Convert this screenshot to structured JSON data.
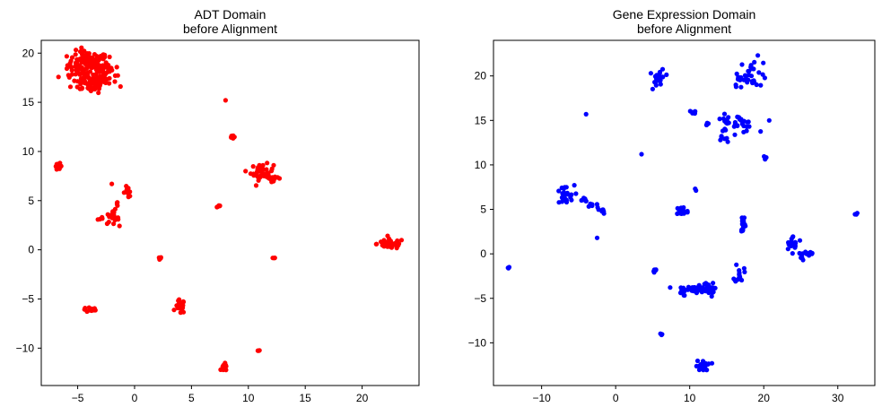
{
  "chart_data": [
    {
      "type": "scatter",
      "title": "ADT Domain\nbefore Alignment",
      "color": "#ff0000",
      "xlim": [
        -8.2,
        25.0
      ],
      "ylim": [
        -13.8,
        21.3
      ],
      "xticks": [
        -5,
        0,
        5,
        10,
        15,
        20
      ],
      "yticks": [
        -10,
        -5,
        0,
        5,
        10,
        15,
        20
      ],
      "clusters": [
        {
          "cx": -4.1,
          "cy": 18.8,
          "sx": 0.9,
          "sy": 0.7,
          "n": 120
        },
        {
          "cx": -3.9,
          "cy": 17.0,
          "sx": 0.8,
          "sy": 0.5,
          "n": 60
        },
        {
          "cx": -2.6,
          "cy": 18.0,
          "sx": 0.5,
          "sy": 0.7,
          "n": 40
        },
        {
          "cx": 8.0,
          "cy": 15.2,
          "sx": 0.05,
          "sy": 0.05,
          "n": 1
        },
        {
          "cx": 8.5,
          "cy": 11.5,
          "sx": 0.1,
          "sy": 0.1,
          "n": 6
        },
        {
          "cx": 11.2,
          "cy": 7.9,
          "sx": 0.5,
          "sy": 0.4,
          "n": 40
        },
        {
          "cx": 12.2,
          "cy": 7.3,
          "sx": 0.4,
          "sy": 0.15,
          "n": 20
        },
        {
          "cx": -6.7,
          "cy": 8.5,
          "sx": 0.15,
          "sy": 0.15,
          "n": 10
        },
        {
          "cx": -0.6,
          "cy": 5.9,
          "sx": 0.2,
          "sy": 0.3,
          "n": 12
        },
        {
          "cx": -2.0,
          "cy": 3.2,
          "sx": 0.3,
          "sy": 0.3,
          "n": 18
        },
        {
          "cx": -1.5,
          "cy": 4.5,
          "sx": 0.1,
          "sy": 0.2,
          "n": 5
        },
        {
          "cx": -3.0,
          "cy": 3.2,
          "sx": 0.15,
          "sy": 0.1,
          "n": 4
        },
        {
          "cx": -2.0,
          "cy": 6.7,
          "sx": 0.05,
          "sy": 0.05,
          "n": 1
        },
        {
          "cx": 7.4,
          "cy": 4.4,
          "sx": 0.1,
          "sy": 0.1,
          "n": 5
        },
        {
          "cx": 22.5,
          "cy": 0.6,
          "sx": 0.6,
          "sy": 0.25,
          "n": 50
        },
        {
          "cx": 2.2,
          "cy": -0.9,
          "sx": 0.1,
          "sy": 0.1,
          "n": 4
        },
        {
          "cx": 12.2,
          "cy": -0.9,
          "sx": 0.08,
          "sy": 0.1,
          "n": 3
        },
        {
          "cx": -3.8,
          "cy": -6.1,
          "sx": 0.4,
          "sy": 0.12,
          "n": 14
        },
        {
          "cx": 4.0,
          "cy": -5.8,
          "sx": 0.2,
          "sy": 0.35,
          "n": 18
        },
        {
          "cx": 10.9,
          "cy": -10.3,
          "sx": 0.08,
          "sy": 0.06,
          "n": 3
        },
        {
          "cx": 7.9,
          "cy": -12.0,
          "sx": 0.15,
          "sy": 0.2,
          "n": 12
        }
      ]
    },
    {
      "type": "scatter",
      "title": "Gene Expression Domain\nbefore Alignment",
      "color": "#0000ff",
      "xlim": [
        -16.5,
        35.0
      ],
      "ylim": [
        -14.8,
        24.0
      ],
      "xticks": [
        -10,
        0,
        10,
        20,
        30
      ],
      "yticks": [
        -10,
        -5,
        0,
        5,
        10,
        15,
        20
      ],
      "clusters": [
        {
          "cx": 5.9,
          "cy": 19.8,
          "sx": 0.4,
          "sy": 0.5,
          "n": 25
        },
        {
          "cx": 18.6,
          "cy": 20.4,
          "sx": 1.0,
          "sy": 0.8,
          "n": 30
        },
        {
          "cx": 16.8,
          "cy": 19.4,
          "sx": 0.4,
          "sy": 0.3,
          "n": 8
        },
        {
          "cx": -4.0,
          "cy": 15.7,
          "sx": 0.05,
          "sy": 0.05,
          "n": 1
        },
        {
          "cx": 10.3,
          "cy": 15.9,
          "sx": 0.3,
          "sy": 0.2,
          "n": 6
        },
        {
          "cx": 12.3,
          "cy": 14.6,
          "sx": 0.15,
          "sy": 0.1,
          "n": 4
        },
        {
          "cx": 16.0,
          "cy": 14.6,
          "sx": 1.5,
          "sy": 0.5,
          "n": 35
        },
        {
          "cx": 14.5,
          "cy": 13.3,
          "sx": 0.3,
          "sy": 0.3,
          "n": 6
        },
        {
          "cx": 3.5,
          "cy": 11.2,
          "sx": 0.05,
          "sy": 0.05,
          "n": 1
        },
        {
          "cx": 20.2,
          "cy": 10.8,
          "sx": 0.1,
          "sy": 0.1,
          "n": 3
        },
        {
          "cx": 10.8,
          "cy": 7.3,
          "sx": 0.08,
          "sy": 0.08,
          "n": 2
        },
        {
          "cx": -7.0,
          "cy": 6.5,
          "sx": 0.7,
          "sy": 0.6,
          "n": 25
        },
        {
          "cx": -4.2,
          "cy": 6.0,
          "sx": 0.2,
          "sy": 0.2,
          "n": 8
        },
        {
          "cx": -3.0,
          "cy": 5.4,
          "sx": 0.3,
          "sy": 0.2,
          "n": 6
        },
        {
          "cx": -1.8,
          "cy": 4.8,
          "sx": 0.3,
          "sy": 0.15,
          "n": 6
        },
        {
          "cx": 9.0,
          "cy": 4.8,
          "sx": 0.4,
          "sy": 0.3,
          "n": 30
        },
        {
          "cx": 17.2,
          "cy": 3.5,
          "sx": 0.15,
          "sy": 0.6,
          "n": 20
        },
        {
          "cx": 24.0,
          "cy": 1.2,
          "sx": 0.6,
          "sy": 0.4,
          "n": 18
        },
        {
          "cx": 26.0,
          "cy": 0.0,
          "sx": 0.4,
          "sy": 0.3,
          "n": 10
        },
        {
          "cx": 25.0,
          "cy": -0.5,
          "sx": 0.2,
          "sy": 0.2,
          "n": 4
        },
        {
          "cx": 32.5,
          "cy": 4.5,
          "sx": 0.08,
          "sy": 0.08,
          "n": 3
        },
        {
          "cx": -2.5,
          "cy": 1.8,
          "sx": 0.05,
          "sy": 0.05,
          "n": 1
        },
        {
          "cx": -14.5,
          "cy": -1.5,
          "sx": 0.1,
          "sy": 0.1,
          "n": 3
        },
        {
          "cx": 5.3,
          "cy": -1.9,
          "sx": 0.15,
          "sy": 0.15,
          "n": 5
        },
        {
          "cx": 16.7,
          "cy": -2.1,
          "sx": 0.3,
          "sy": 0.6,
          "n": 15
        },
        {
          "cx": 10.5,
          "cy": -4.0,
          "sx": 1.2,
          "sy": 0.2,
          "n": 40
        },
        {
          "cx": 12.5,
          "cy": -4.0,
          "sx": 0.4,
          "sy": 0.4,
          "n": 25
        },
        {
          "cx": 9.0,
          "cy": -4.3,
          "sx": 0.2,
          "sy": 0.2,
          "n": 6
        },
        {
          "cx": 6.2,
          "cy": -9.0,
          "sx": 0.08,
          "sy": 0.08,
          "n": 3
        },
        {
          "cx": 11.9,
          "cy": -12.6,
          "sx": 0.5,
          "sy": 0.3,
          "n": 18
        }
      ]
    }
  ]
}
